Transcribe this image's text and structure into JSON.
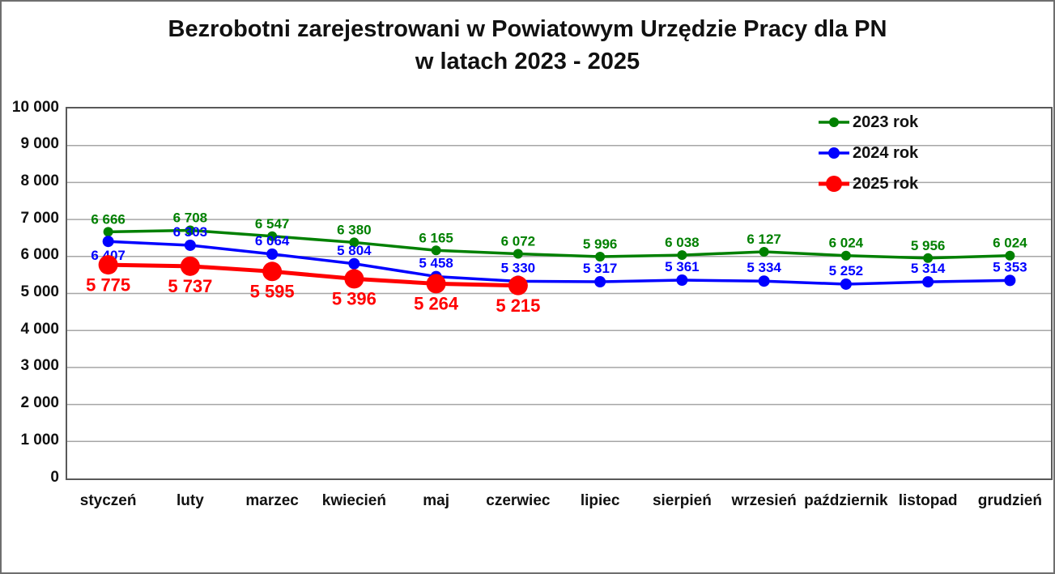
{
  "title": {
    "line1": "Bezrobotni zarejestrowani w Powiatowym Urzędzie Pracy dla PN",
    "line2": "w latach 2023 - 2025"
  },
  "chart_data": {
    "type": "line",
    "title": "Bezrobotni zarejestrowani w Powiatowym Urzędzie Pracy dla PN w latach 2023 - 2025",
    "categories": [
      "styczeń",
      "luty",
      "marzec",
      "kwiecień",
      "maj",
      "czerwiec",
      "lipiec",
      "sierpień",
      "wrzesień",
      "październik",
      "listopad",
      "grudzień"
    ],
    "series": [
      {
        "name": "2023 rok",
        "color": "#008000",
        "values": [
          6666,
          6708,
          6547,
          6380,
          6165,
          6072,
          5996,
          6038,
          6127,
          6024,
          5956,
          6024
        ],
        "line_width": 3.5,
        "marker_radius": 6,
        "label_font_size": 17,
        "label_position": "above"
      },
      {
        "name": "2024 rok",
        "color": "#0000ff",
        "values": [
          6407,
          6303,
          6064,
          5804,
          5458,
          5330,
          5317,
          5361,
          5334,
          5252,
          5314,
          5353
        ],
        "line_width": 3.5,
        "marker_radius": 7,
        "label_font_size": 17,
        "label_position": "above",
        "first_label_position": "below"
      },
      {
        "name": "2025 rok",
        "color": "#ff0000",
        "values": [
          5775,
          5737,
          5595,
          5396,
          5264,
          5215
        ],
        "line_width": 5,
        "marker_radius": 12,
        "label_font_size": 22,
        "label_position": "below"
      }
    ],
    "ylim": [
      0,
      10000
    ],
    "y_tick_step": 1000,
    "y_tick_labels": [
      "10 000",
      "9 000",
      "8 000",
      "7 000",
      "6 000",
      "5 000",
      "4 000",
      "3 000",
      "2 000",
      "1 000",
      "0"
    ],
    "grid": "horizontal",
    "gridline_color": "#a6a6a6",
    "legend_position": "top-right",
    "number_format": "space-thousands"
  }
}
